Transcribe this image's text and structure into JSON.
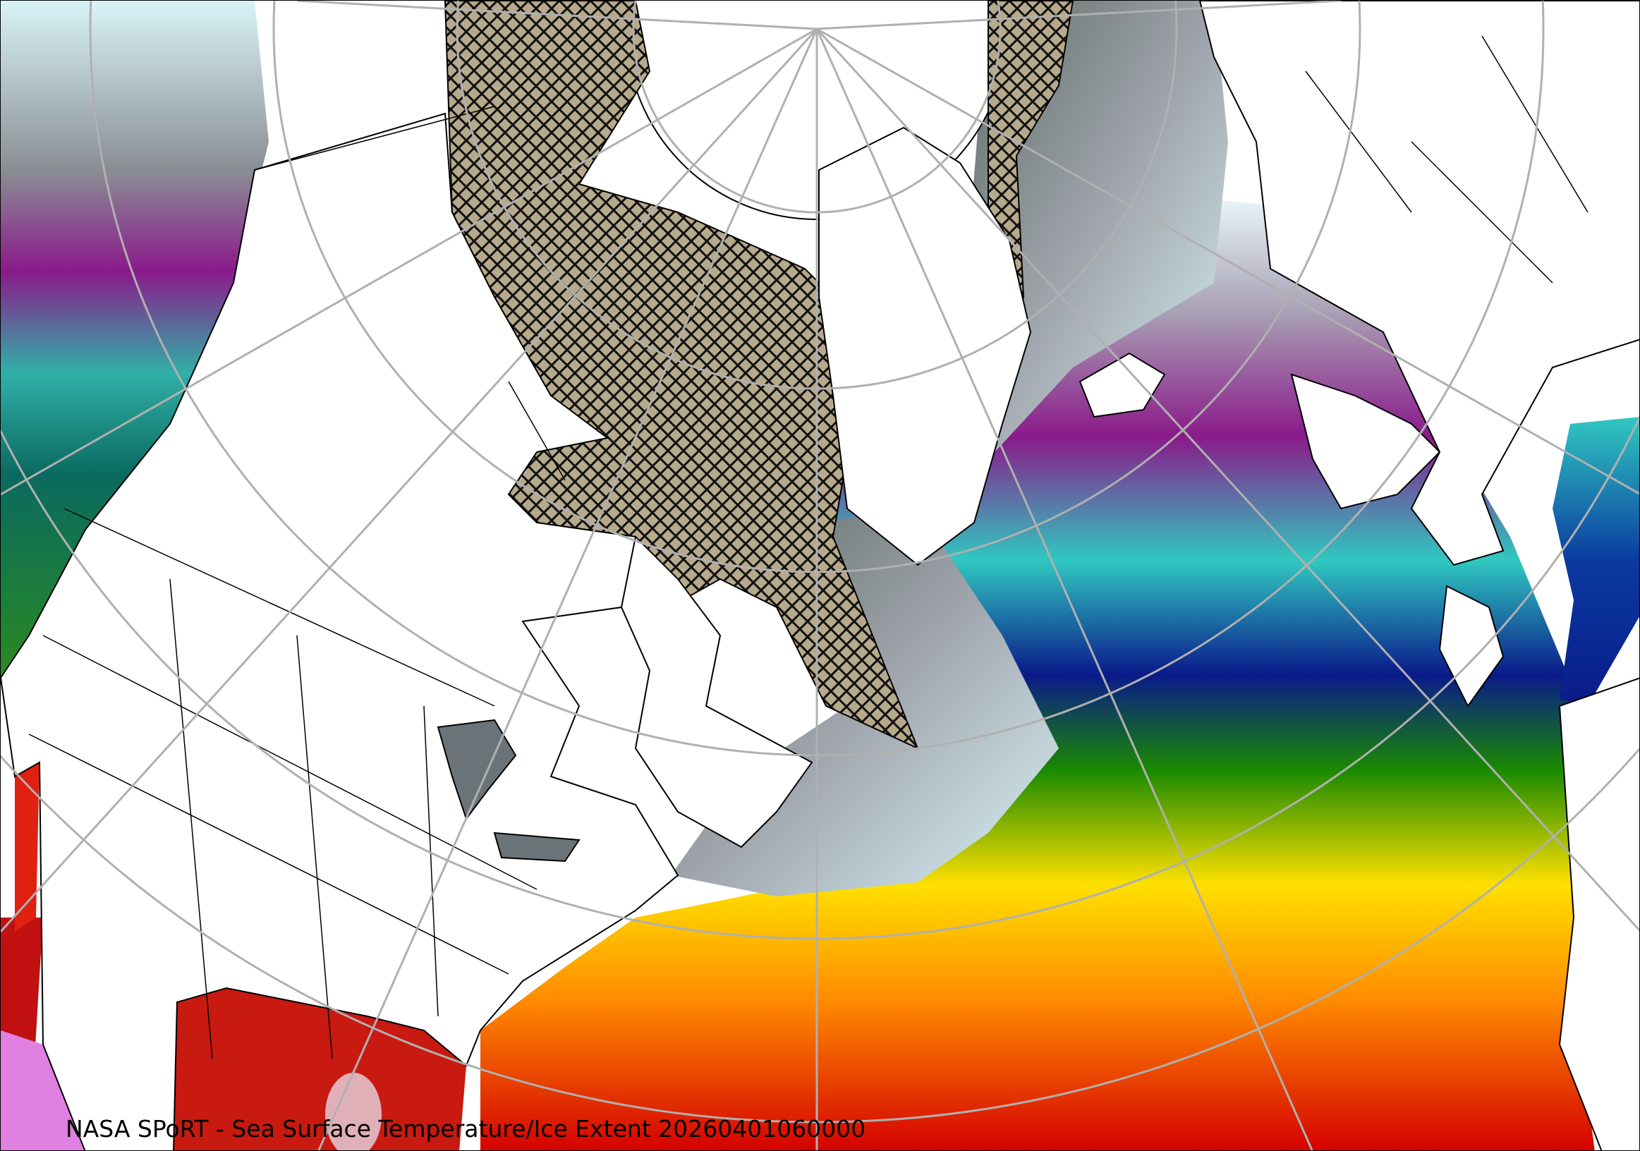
{
  "caption": "NASA SPoRT - Sea Surface Temperature/Ice Extent 20260401060000",
  "map": {
    "projection": "polar stereographic (North Pole)",
    "layers": [
      "sea-surface-temperature",
      "ice-extent-hatched",
      "coastlines",
      "political-boundaries",
      "graticule"
    ],
    "colors": {
      "land": "#ffffff",
      "ice": "#b7a98b",
      "graticule": "#b0b0b0",
      "warm": "#d40000",
      "orange": "#ff8c00",
      "yellow": "#ffe000",
      "green": "#1a8a00",
      "navy": "#0a1a8a",
      "teal": "#30c8c0",
      "purple": "#8a1a8a",
      "pale": "#d8f4f8",
      "gray": "#7a8488"
    }
  }
}
